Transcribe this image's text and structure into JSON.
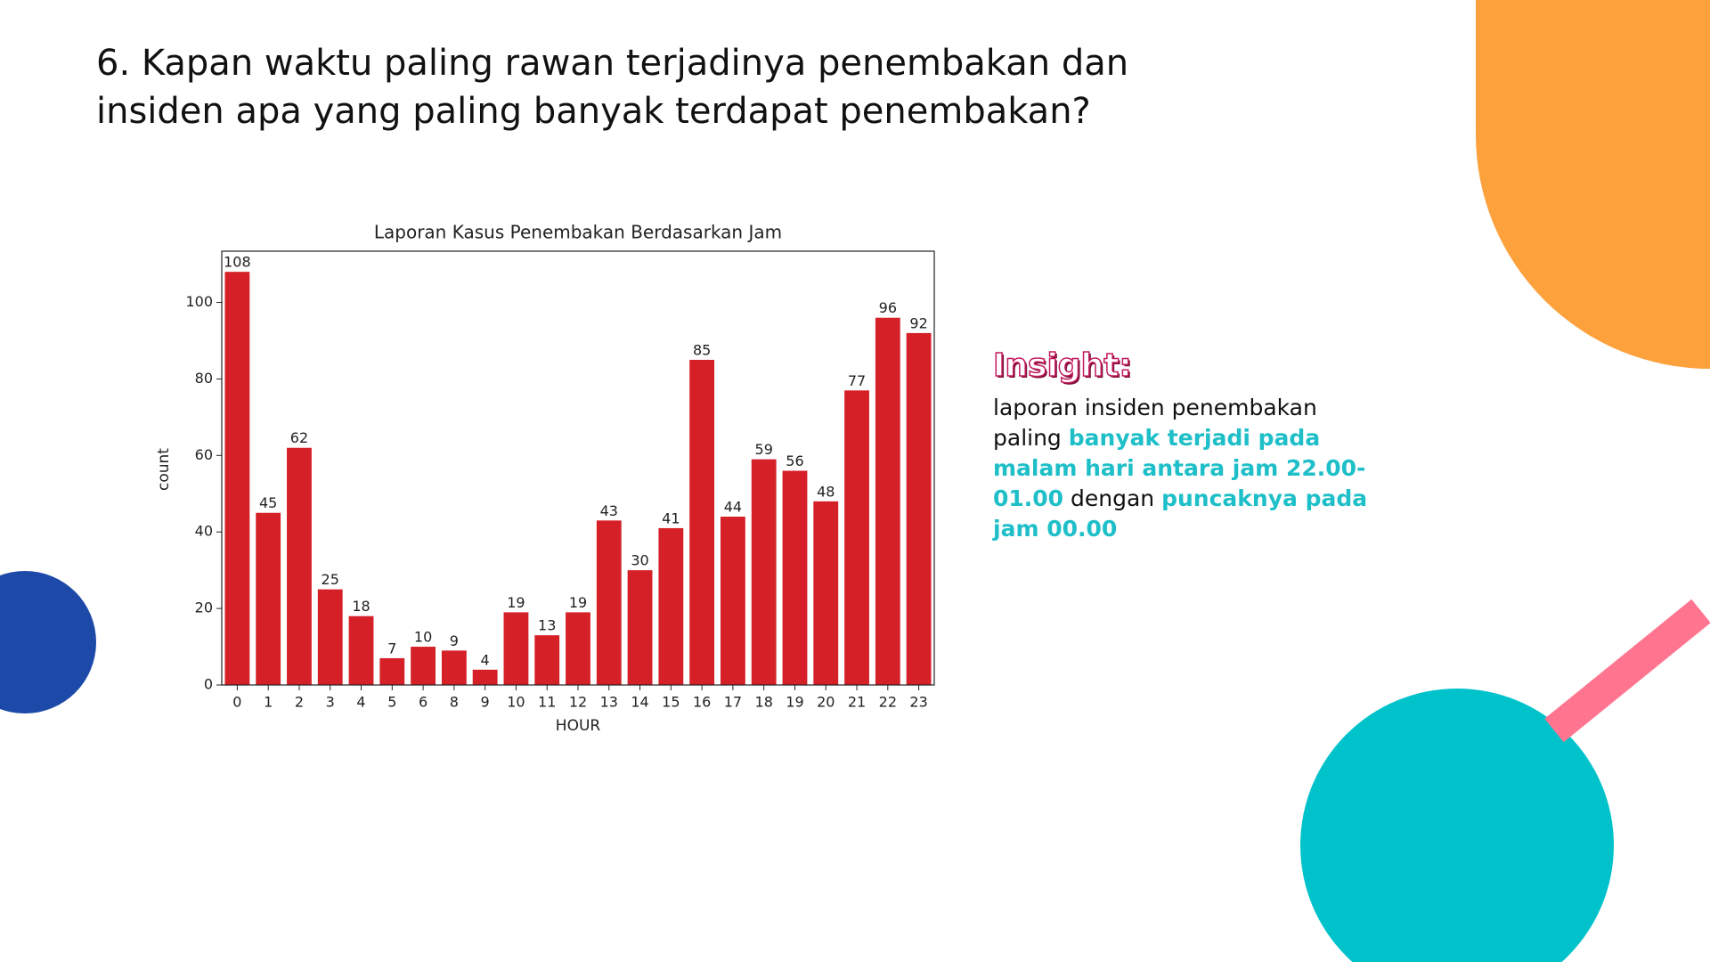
{
  "slide": {
    "title": [
      "6. Kapan waktu paling rawan terjadinya penembakan dan",
      "insiden apa yang paling banyak terdapat penembakan?"
    ],
    "insight": {
      "heading": "Insight:",
      "body": [
        {
          "text": "laporan insiden penembakan paling ",
          "highlight": false
        },
        {
          "text": "banyak terjadi pada malam hari antara jam 22.00-01.00",
          "highlight": true
        },
        {
          "text": " dengan ",
          "highlight": false
        },
        {
          "text": "puncaknya pada jam 00.00",
          "highlight": true
        }
      ]
    }
  },
  "chart_data": {
    "type": "bar",
    "title": "Laporan Kasus Penembakan Berdasarkan Jam",
    "x_label": "HOUR",
    "y_label": "count",
    "categories": [
      "0",
      "1",
      "2",
      "3",
      "4",
      "5",
      "6",
      "8",
      "9",
      "10",
      "11",
      "12",
      "13",
      "14",
      "15",
      "16",
      "17",
      "18",
      "19",
      "20",
      "21",
      "22",
      "23"
    ],
    "values": [
      108,
      45,
      62,
      25,
      18,
      7,
      10,
      9,
      4,
      19,
      13,
      19,
      43,
      30,
      41,
      85,
      44,
      59,
      56,
      48,
      77,
      96,
      92
    ],
    "color": "#d62028",
    "ylim": [
      0,
      113.4
    ],
    "yticks": [
      0,
      20,
      40,
      60,
      80,
      100
    ],
    "grid": false
  }
}
